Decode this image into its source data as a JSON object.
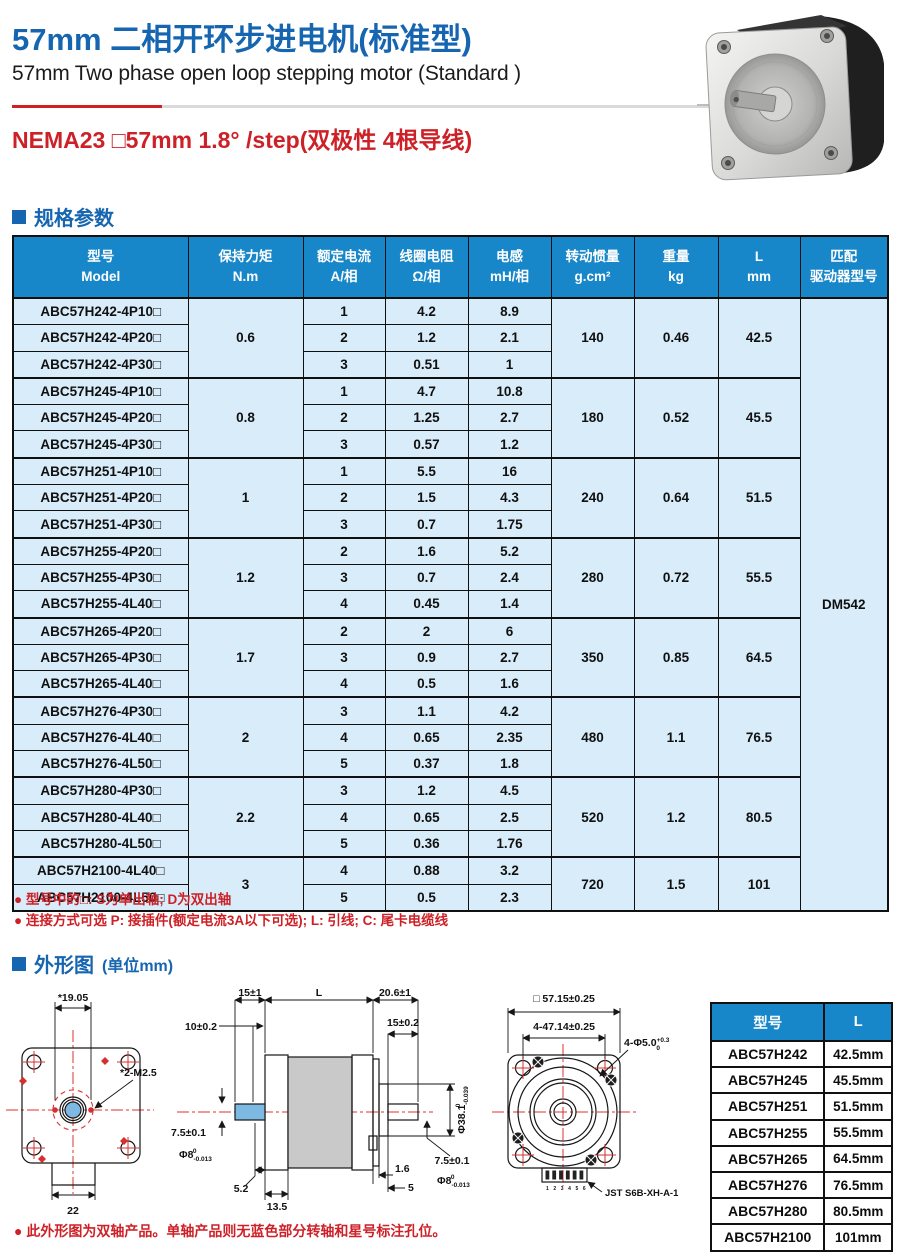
{
  "page": {
    "title_zh": "57mm 二相开环步进电机(标准型)",
    "title_en": "57mm Two phase open loop stepping motor (Standard )",
    "spec_line": "NEMA23  □57mm   1.8° /step(双极性 4根导线)"
  },
  "colors": {
    "accent_blue": "#1565b0",
    "table_header_blue": "#1787c9",
    "row_blue": "#d9ecf9",
    "red": "#cd2127",
    "shaft_blue": "#7db9e3"
  },
  "sections": {
    "specs_title": "规格参数",
    "outline_title": "外形图",
    "outline_unit": "(单位mm)"
  },
  "spec_table": {
    "headers": [
      {
        "line1": "型号",
        "line2": "Model"
      },
      {
        "line1": "保持力矩",
        "line2": "N.m"
      },
      {
        "line1": "额定电流",
        "line2": "A/相"
      },
      {
        "line1": "线圈电阻",
        "line2": "Ω/相"
      },
      {
        "line1": "电感",
        "line2": "mH/相"
      },
      {
        "line1": "转动惯量",
        "line2": "g.cm²"
      },
      {
        "line1": "重量",
        "line2": "kg"
      },
      {
        "line1": "L",
        "line2": "mm"
      },
      {
        "line1": "匹配",
        "line2": "驱动器型号"
      }
    ],
    "driver": "DM542",
    "groups": [
      {
        "torque": "0.6",
        "inertia": "140",
        "weight": "0.46",
        "length": "42.5",
        "rows": [
          {
            "model": "ABC57H242-4P10□",
            "current": "1",
            "resistance": "4.2",
            "inductance": "8.9"
          },
          {
            "model": "ABC57H242-4P20□",
            "current": "2",
            "resistance": "1.2",
            "inductance": "2.1"
          },
          {
            "model": "ABC57H242-4P30□",
            "current": "3",
            "resistance": "0.51",
            "inductance": "1"
          }
        ]
      },
      {
        "torque": "0.8",
        "inertia": "180",
        "weight": "0.52",
        "length": "45.5",
        "rows": [
          {
            "model": "ABC57H245-4P10□",
            "current": "1",
            "resistance": "4.7",
            "inductance": "10.8"
          },
          {
            "model": "ABC57H245-4P20□",
            "current": "2",
            "resistance": "1.25",
            "inductance": "2.7"
          },
          {
            "model": "ABC57H245-4P30□",
            "current": "3",
            "resistance": "0.57",
            "inductance": "1.2"
          }
        ]
      },
      {
        "torque": "1",
        "inertia": "240",
        "weight": "0.64",
        "length": "51.5",
        "rows": [
          {
            "model": "ABC57H251-4P10□",
            "current": "1",
            "resistance": "5.5",
            "inductance": "16"
          },
          {
            "model": "ABC57H251-4P20□",
            "current": "2",
            "resistance": "1.5",
            "inductance": "4.3"
          },
          {
            "model": "ABC57H251-4P30□",
            "current": "3",
            "resistance": "0.7",
            "inductance": "1.75"
          }
        ]
      },
      {
        "torque": "1.2",
        "inertia": "280",
        "weight": "0.72",
        "length": "55.5",
        "rows": [
          {
            "model": "ABC57H255-4P20□",
            "current": "2",
            "resistance": "1.6",
            "inductance": "5.2"
          },
          {
            "model": "ABC57H255-4P30□",
            "current": "3",
            "resistance": "0.7",
            "inductance": "2.4"
          },
          {
            "model": "ABC57H255-4L40□",
            "current": "4",
            "resistance": "0.45",
            "inductance": "1.4"
          }
        ]
      },
      {
        "torque": "1.7",
        "inertia": "350",
        "weight": "0.85",
        "length": "64.5",
        "rows": [
          {
            "model": "ABC57H265-4P20□",
            "current": "2",
            "resistance": "2",
            "inductance": "6"
          },
          {
            "model": "ABC57H265-4P30□",
            "current": "3",
            "resistance": "0.9",
            "inductance": "2.7"
          },
          {
            "model": "ABC57H265-4L40□",
            "current": "4",
            "resistance": "0.5",
            "inductance": "1.6"
          }
        ]
      },
      {
        "torque": "2",
        "inertia": "480",
        "weight": "1.1",
        "length": "76.5",
        "rows": [
          {
            "model": "ABC57H276-4P30□",
            "current": "3",
            "resistance": "1.1",
            "inductance": "4.2"
          },
          {
            "model": "ABC57H276-4L40□",
            "current": "4",
            "resistance": "0.65",
            "inductance": "2.35"
          },
          {
            "model": "ABC57H276-4L50□",
            "current": "5",
            "resistance": "0.37",
            "inductance": "1.8"
          }
        ]
      },
      {
        "torque": "2.2",
        "inertia": "520",
        "weight": "1.2",
        "length": "80.5",
        "rows": [
          {
            "model": "ABC57H280-4P30□",
            "current": "3",
            "resistance": "1.2",
            "inductance": "4.5"
          },
          {
            "model": "ABC57H280-4L40□",
            "current": "4",
            "resistance": "0.65",
            "inductance": "2.5"
          },
          {
            "model": "ABC57H280-4L50□",
            "current": "5",
            "resistance": "0.36",
            "inductance": "1.76"
          }
        ]
      },
      {
        "torque": "3",
        "inertia": "720",
        "weight": "1.5",
        "length": "101",
        "rows": [
          {
            "model": "ABC57H2100-4L40□",
            "current": "4",
            "resistance": "0.88",
            "inductance": "3.2"
          },
          {
            "model": "ABC57H2100-4L50□",
            "current": "5",
            "resistance": "0.5",
            "inductance": "2.3"
          }
        ]
      }
    ]
  },
  "spec_notes": [
    "● 型号中的□:  S为单出轴; D为双出轴",
    "● 连接方式可选 P: 接插件(额定电流3A以下可选); L: 引线; C: 尾卡电缆线"
  ],
  "outline_note": "● 此外形图为双轴产品。单轴产品则无蓝色部分转轴和星号标注孔位。",
  "dims_table": {
    "headers": [
      "型号",
      "L"
    ],
    "rows": [
      {
        "model": "ABC57H242",
        "l": "42.5mm"
      },
      {
        "model": "ABC57H245",
        "l": "45.5mm"
      },
      {
        "model": "ABC57H251",
        "l": "51.5mm"
      },
      {
        "model": "ABC57H255",
        "l": "55.5mm"
      },
      {
        "model": "ABC57H265",
        "l": "64.5mm"
      },
      {
        "model": "ABC57H276",
        "l": "76.5mm"
      },
      {
        "model": "ABC57H280",
        "l": "80.5mm"
      },
      {
        "model": "ABC57H2100",
        "l": "101mm"
      }
    ]
  },
  "front_view": {
    "dim_top": "*19.05",
    "dim_bottom": "22",
    "holes_label": "*2-M2.5"
  },
  "side_view": {
    "dim_front_shaft_len": "15±1",
    "dim_body_len": "L",
    "dim_rear_shaft_len": "20.6±1",
    "dim_front_shaft_usable": "10±0.2",
    "dim_rear_shaft_usable": "15±0.2",
    "dim_shaft_flat_left": "7.5±0.1",
    "shaft_dia_left": "Φ8",
    "shaft_dia_left_tol_hi": "0",
    "shaft_dia_left_tol_lo": "-0.013",
    "pilot_dia": "Φ38.1",
    "pilot_dia_tol_hi": "0",
    "pilot_dia_tol_lo": "-0.039",
    "dim_shaft_flat_right": "7.5±0.1",
    "shaft_dia_right": "Φ8",
    "shaft_dia_right_tol_hi": "0",
    "shaft_dia_right_tol_lo": "-0.013",
    "dim_5_2": "5.2",
    "dim_13_5": "13.5",
    "dim_1_6": "1.6",
    "dim_5": "5"
  },
  "face_view": {
    "dim_square": "□ 57.15±0.25",
    "dim_hole_spacing": "4-47.14±0.25",
    "hole_dia": "4-Φ5.0",
    "hole_dia_tol_hi": "+0.3",
    "hole_dia_tol_lo": "0",
    "pin_numbers": "1 2 3 4 5 6",
    "connector": "JST S6B-XH-A-1"
  }
}
